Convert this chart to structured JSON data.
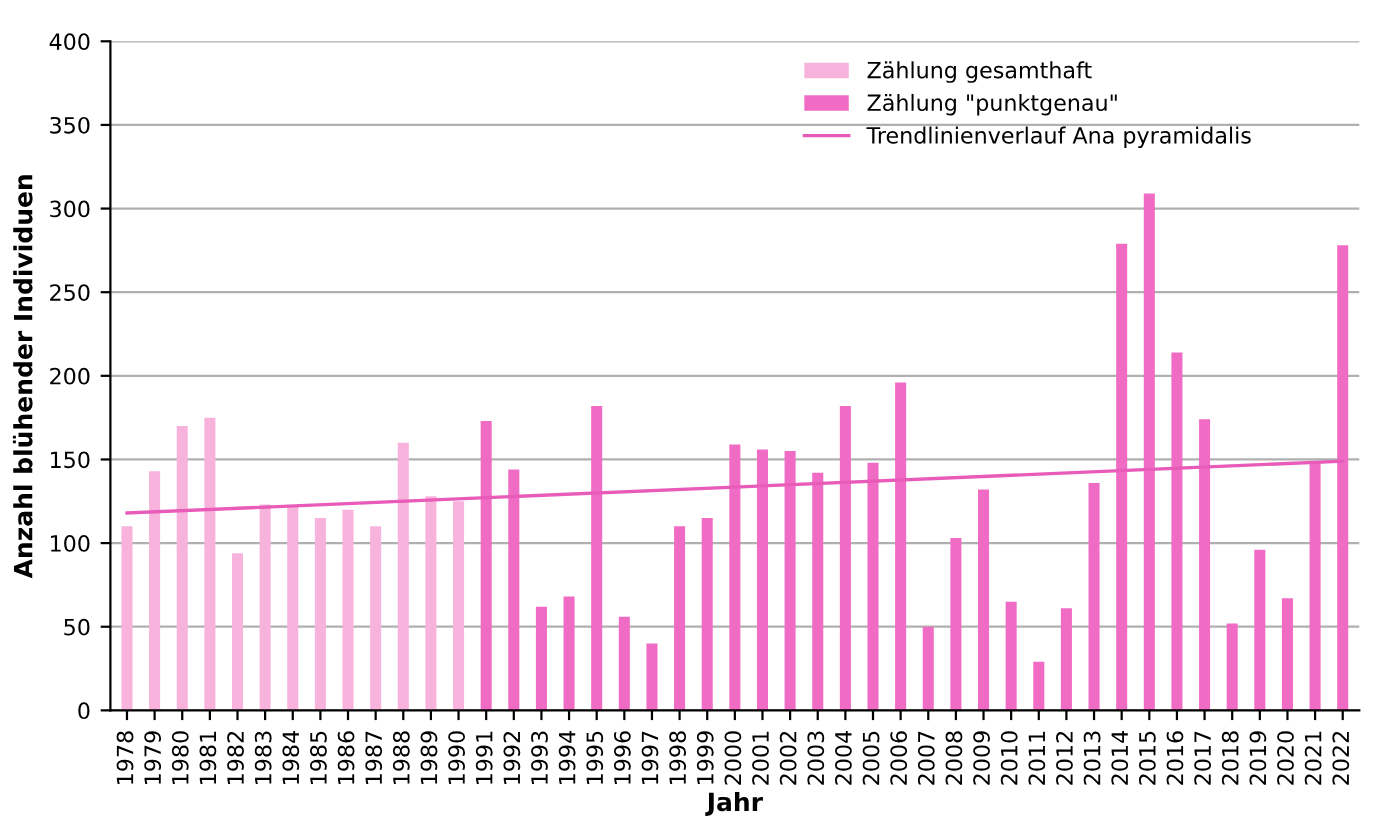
{
  "chart_data": {
    "type": "bar",
    "xlabel": "Jahr",
    "ylabel": "Anzahl blühender Individuen",
    "categories": [
      "1978",
      "1979",
      "1980",
      "1981",
      "1982",
      "1983",
      "1984",
      "1985",
      "1986",
      "1987",
      "1988",
      "1989",
      "1990",
      "1991",
      "1992",
      "1993",
      "1994",
      "1995",
      "1996",
      "1997",
      "1998",
      "1999",
      "2000",
      "2001",
      "2002",
      "2003",
      "2004",
      "2005",
      "2006",
      "2007",
      "2008",
      "2009",
      "2010",
      "2011",
      "2012",
      "2013",
      "2014",
      "2015",
      "2016",
      "2017",
      "2018",
      "2019",
      "2020",
      "2021",
      "2022"
    ],
    "series": [
      {
        "name": "Zählung gesamthaft",
        "color": "#f7b3dc",
        "values": [
          110,
          143,
          170,
          175,
          94,
          123,
          122,
          115,
          120,
          110,
          160,
          128,
          125,
          null,
          null,
          null,
          null,
          null,
          null,
          null,
          null,
          null,
          null,
          null,
          null,
          null,
          null,
          null,
          null,
          null,
          null,
          null,
          null,
          null,
          null,
          null,
          null,
          null,
          null,
          null,
          null,
          null,
          null,
          null,
          null
        ]
      },
      {
        "name": "Zählung \"punktgenau\"",
        "color": "#f06cc4",
        "values": [
          null,
          null,
          null,
          null,
          null,
          null,
          null,
          null,
          null,
          null,
          null,
          null,
          null,
          173,
          144,
          62,
          68,
          182,
          56,
          40,
          110,
          115,
          159,
          156,
          155,
          142,
          182,
          148,
          196,
          50,
          103,
          132,
          65,
          29,
          61,
          136,
          279,
          309,
          214,
          174,
          52,
          96,
          67,
          148,
          278
        ]
      },
      {
        "name": "Trendlinienverlauf Ana pyramidalis",
        "type": "line",
        "color": "#e85bb8",
        "values": [
          118,
          null,
          null,
          null,
          null,
          null,
          null,
          null,
          null,
          null,
          null,
          null,
          null,
          null,
          null,
          null,
          null,
          null,
          null,
          null,
          null,
          null,
          null,
          null,
          null,
          null,
          null,
          null,
          null,
          null,
          null,
          null,
          null,
          null,
          null,
          null,
          null,
          null,
          null,
          null,
          null,
          null,
          null,
          null,
          149
        ]
      }
    ],
    "ylim": [
      0,
      400
    ],
    "yticks": [
      0,
      50,
      100,
      150,
      200,
      250,
      300,
      350,
      400
    ],
    "grid": "y",
    "legend": "top right"
  }
}
